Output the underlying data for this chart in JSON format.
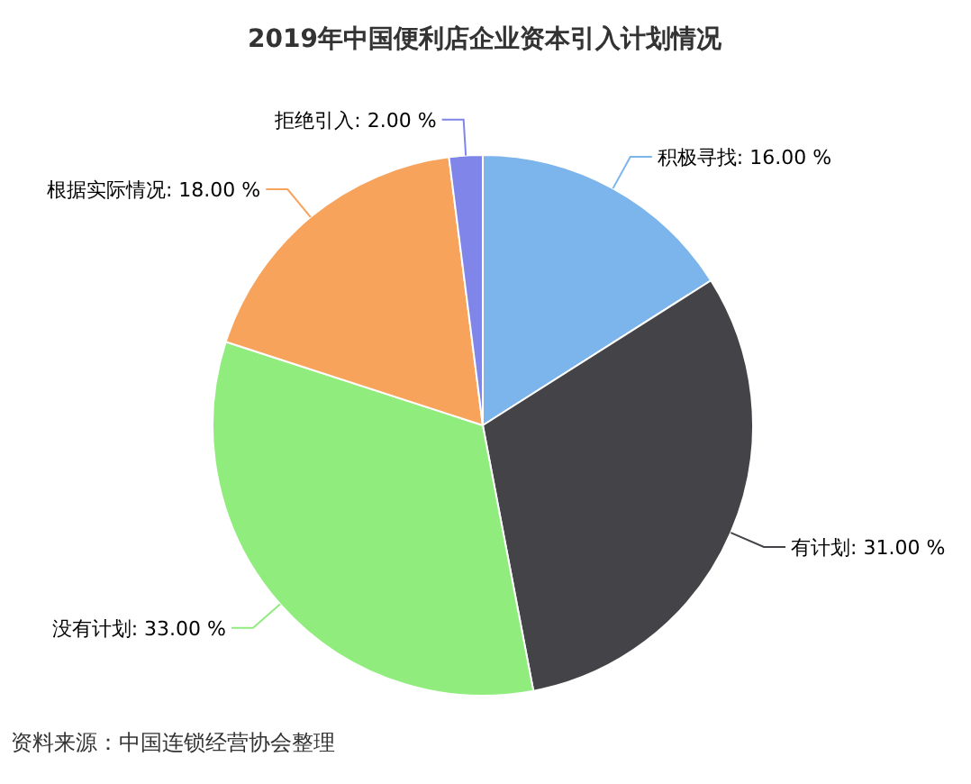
{
  "chart_data": {
    "type": "pie",
    "title": "2019年中国便利店企业资本引入计划情况",
    "categories": [
      "积极寻找",
      "有计划",
      "没有计划",
      "根据实际情况",
      "拒绝引入"
    ],
    "values": [
      16,
      31,
      33,
      18,
      2
    ],
    "value_labels": [
      "16.00 %",
      "31.00 %",
      "33.00 %",
      "18.00 %",
      "2.00 %"
    ],
    "colors": [
      "#7cb5ec",
      "#434348",
      "#90ed7d",
      "#f7a35c",
      "#8085e9"
    ],
    "annotations": [
      "资料来源：中国连锁经营协会整理"
    ]
  }
}
